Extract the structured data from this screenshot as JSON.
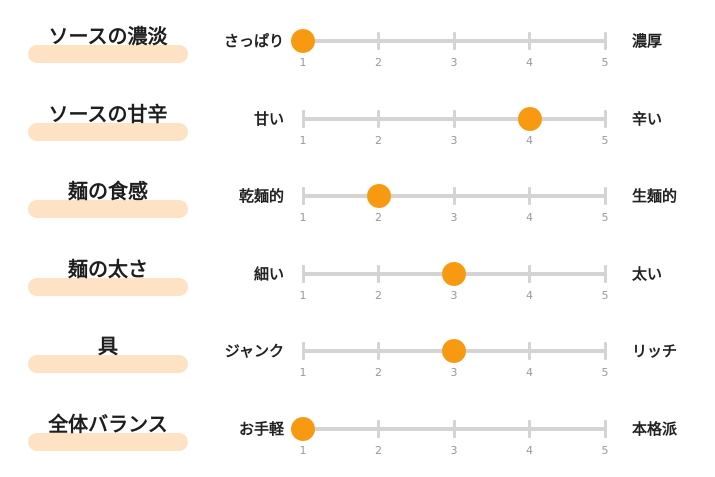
{
  "scale": {
    "min": 1,
    "max": 5,
    "ticks": [
      "1",
      "2",
      "3",
      "4",
      "5"
    ]
  },
  "accent_color": "#f79a12",
  "pill_color": "#fde3c4",
  "rows": [
    {
      "title": "ソースの濃淡",
      "left_label": "さっぱり",
      "right_label": "濃厚",
      "value": 1
    },
    {
      "title": "ソースの甘辛",
      "left_label": "甘い",
      "right_label": "辛い",
      "value": 4
    },
    {
      "title": "麺の食感",
      "left_label": "乾麺的",
      "right_label": "生麺的",
      "value": 2
    },
    {
      "title": "麺の太さ",
      "left_label": "細い",
      "right_label": "太い",
      "value": 3
    },
    {
      "title": "具",
      "left_label": "ジャンク",
      "right_label": "リッチ",
      "value": 3
    },
    {
      "title": "全体バランス",
      "left_label": "お手軽",
      "right_label": "本格派",
      "value": 1
    }
  ]
}
